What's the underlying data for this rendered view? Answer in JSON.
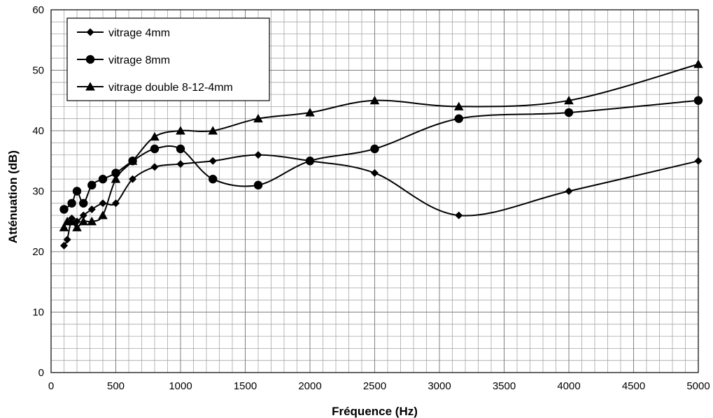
{
  "chart_data": {
    "type": "line",
    "xlabel": "Fréquence (Hz)",
    "ylabel": "Atténuation (dB)",
    "xlim": [
      0,
      5000
    ],
    "ylim": [
      0,
      60
    ],
    "x_ticks": [
      "0",
      "500",
      "1000",
      "1500",
      "2000",
      "2500",
      "3000",
      "3500",
      "4000",
      "4500",
      "5000"
    ],
    "y_ticks": [
      "0",
      "10",
      "20",
      "30",
      "40",
      "50",
      "60"
    ],
    "grid": true,
    "legend_position": "top-left",
    "series": [
      {
        "name": "vitrage 4mm",
        "marker": "diamond",
        "x": [
          100,
          125,
          160,
          200,
          250,
          315,
          400,
          500,
          630,
          800,
          1000,
          1250,
          1600,
          2000,
          2500,
          3150,
          4000,
          5000
        ],
        "y": [
          21,
          22,
          25.5,
          25,
          26,
          27,
          28,
          28,
          32,
          34,
          34.5,
          35,
          36,
          35,
          33,
          26,
          30,
          35
        ]
      },
      {
        "name": "vitrage 8mm",
        "marker": "circle",
        "x": [
          100,
          160,
          200,
          250,
          315,
          400,
          500,
          630,
          800,
          1000,
          1250,
          1600,
          2000,
          2500,
          3150,
          4000,
          5000
        ],
        "y": [
          27,
          28,
          30,
          28,
          31,
          32,
          33,
          35,
          37,
          37,
          32,
          31,
          35,
          37,
          42,
          43,
          45
        ]
      },
      {
        "name": "vitrage double 8-12-4mm",
        "marker": "triangle",
        "x": [
          100,
          125,
          160,
          200,
          250,
          315,
          400,
          500,
          630,
          800,
          1000,
          1250,
          1600,
          2000,
          2500,
          3150,
          4000,
          5000
        ],
        "y": [
          24,
          25,
          25,
          24,
          25,
          25,
          26,
          32,
          35,
          39,
          40,
          40,
          42,
          43,
          45,
          44,
          45,
          51
        ]
      }
    ]
  }
}
